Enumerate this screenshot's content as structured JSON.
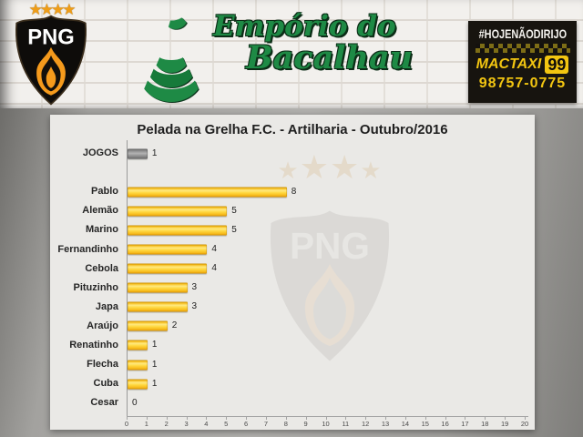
{
  "header": {
    "club_badge": {
      "initials": "PNG",
      "stars": [
        "★",
        "★",
        "★",
        "★"
      ]
    },
    "sponsor_logo": {
      "line1": "Empório do",
      "line2": "Bacalhau"
    },
    "taxi_ad": {
      "hashtag": "#HOJENÃODIRIJO",
      "brand": "MACTAXI",
      "badge": "99",
      "phone": "98757-0775"
    }
  },
  "watermark": {
    "initials": "PNG",
    "stars": [
      "★",
      "★",
      "★",
      "★"
    ]
  },
  "chart_data": {
    "type": "bar",
    "orientation": "horizontal",
    "title": "Pelada na Grelha F.C. - Artilharia - Outubro/2016",
    "rows": [
      {
        "label": "JOGOS",
        "value": 1,
        "series": "games"
      },
      {
        "label": "",
        "value": null,
        "series": "spacer"
      },
      {
        "label": "Pablo",
        "value": 8,
        "series": "goals"
      },
      {
        "label": "Alemão",
        "value": 5,
        "series": "goals"
      },
      {
        "label": "Marino",
        "value": 5,
        "series": "goals"
      },
      {
        "label": "Fernandinho",
        "value": 4,
        "series": "goals"
      },
      {
        "label": "Cebola",
        "value": 4,
        "series": "goals"
      },
      {
        "label": "Pituzinho",
        "value": 3,
        "series": "goals"
      },
      {
        "label": "Japa",
        "value": 3,
        "series": "goals"
      },
      {
        "label": "Araújo",
        "value": 2,
        "series": "goals"
      },
      {
        "label": "Renatinho",
        "value": 1,
        "series": "goals"
      },
      {
        "label": "Flecha",
        "value": 1,
        "series": "goals"
      },
      {
        "label": "Cuba",
        "value": 1,
        "series": "goals"
      },
      {
        "label": "Cesar",
        "value": 0,
        "series": "goals"
      }
    ],
    "xlim": [
      0,
      20
    ],
    "x_ticks": [
      0,
      1,
      2,
      3,
      4,
      5,
      6,
      7,
      8,
      9,
      10,
      11,
      12,
      13,
      14,
      15,
      16,
      17,
      18,
      19,
      20
    ],
    "grid": false,
    "legend": false,
    "colors": {
      "goals_bar": "#FFC516",
      "games_bar": "#8C8C8C",
      "logo_green": "#1E8A45",
      "taxi_yellow": "#F2C511",
      "flame_orange": "#F59A1C"
    }
  }
}
